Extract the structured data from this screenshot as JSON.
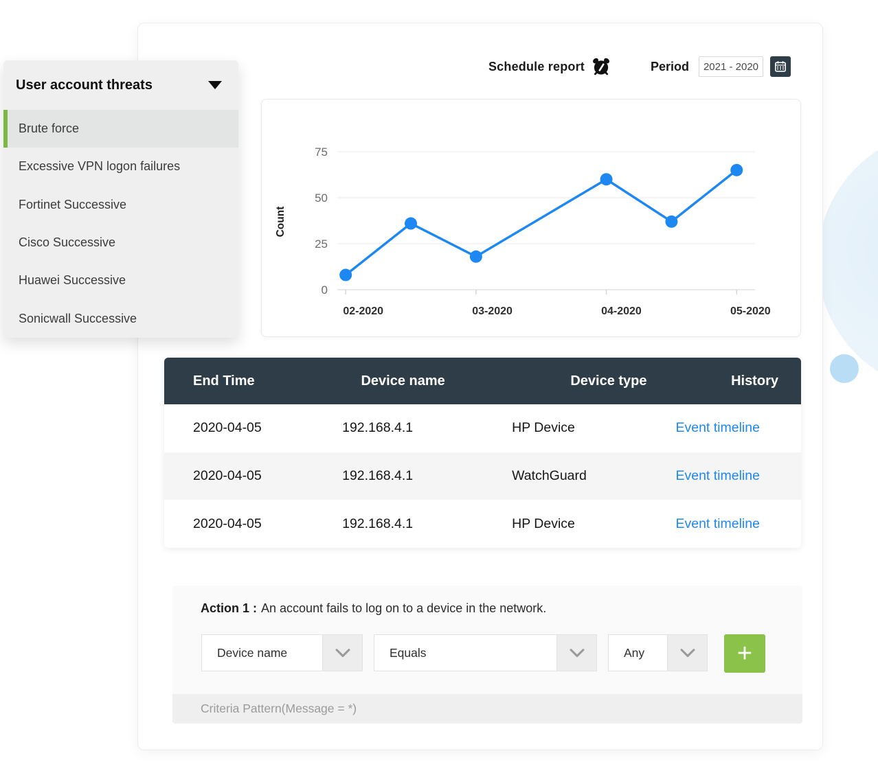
{
  "colors": {
    "accent_blue": "#1e88f2",
    "accent_green": "#8bc34a",
    "sidebar_selected_green": "#7cb944",
    "table_header_bg": "#2e3d48",
    "calendar_button_bg": "#2e3d48"
  },
  "sidebar": {
    "title": "User account threats",
    "items": [
      {
        "label": "Brute force",
        "selected": true
      },
      {
        "label": "Excessive VPN logon failures",
        "selected": false
      },
      {
        "label": "Fortinet Successive",
        "selected": false
      },
      {
        "label": "Cisco Successive",
        "selected": false
      },
      {
        "label": "Huawei Successive",
        "selected": false
      },
      {
        "label": "Sonicwall Successive",
        "selected": false
      }
    ]
  },
  "header": {
    "schedule_report_label": "Schedule report",
    "period_label": "Period",
    "period_value": "2021 - 2020"
  },
  "chart_data": {
    "type": "line",
    "title": "",
    "xlabel": "",
    "ylabel": "Count",
    "x_tick_labels": [
      "02-2020",
      "03-2020",
      "04-2020",
      "05-2020"
    ],
    "x_unit_note": "u is month index on the x-axis: 0 = 02-2020, 1 = 03-2020, 2 = 04-2020, 3 = 05-2020",
    "y_ticks": [
      0,
      25,
      50,
      75
    ],
    "ylim": [
      0,
      75
    ],
    "grid": true,
    "legend": false,
    "series": [
      {
        "name": "Count",
        "color": "#1e88f2",
        "points": [
          {
            "u": 0,
            "value": 8
          },
          {
            "u": 0.5,
            "value": 36
          },
          {
            "u": 1,
            "value": 18
          },
          {
            "u": 2,
            "value": 60
          },
          {
            "u": 2.5,
            "value": 37
          },
          {
            "u": 3,
            "value": 65
          }
        ]
      }
    ]
  },
  "table": {
    "columns": [
      "End Time",
      "Device name",
      "Device type",
      "History"
    ],
    "rows": [
      {
        "end_time": "2020-04-05",
        "device_name": "192.168.4.1",
        "device_type": "HP Device",
        "history": "Event timeline"
      },
      {
        "end_time": "2020-04-05",
        "device_name": "192.168.4.1",
        "device_type": "WatchGuard",
        "history": "Event timeline"
      },
      {
        "end_time": "2020-04-05",
        "device_name": "192.168.4.1",
        "device_type": "HP Device",
        "history": "Event timeline"
      }
    ]
  },
  "action_builder": {
    "title_prefix": "Action 1 :",
    "title_text": "An account fails to log on to a device in the network.",
    "dropdowns": [
      {
        "value": "Device name"
      },
      {
        "value": "Equals"
      },
      {
        "value": "Any"
      }
    ],
    "add_button_label": "+",
    "criteria_text": "Criteria Pattern(Message = *)"
  }
}
